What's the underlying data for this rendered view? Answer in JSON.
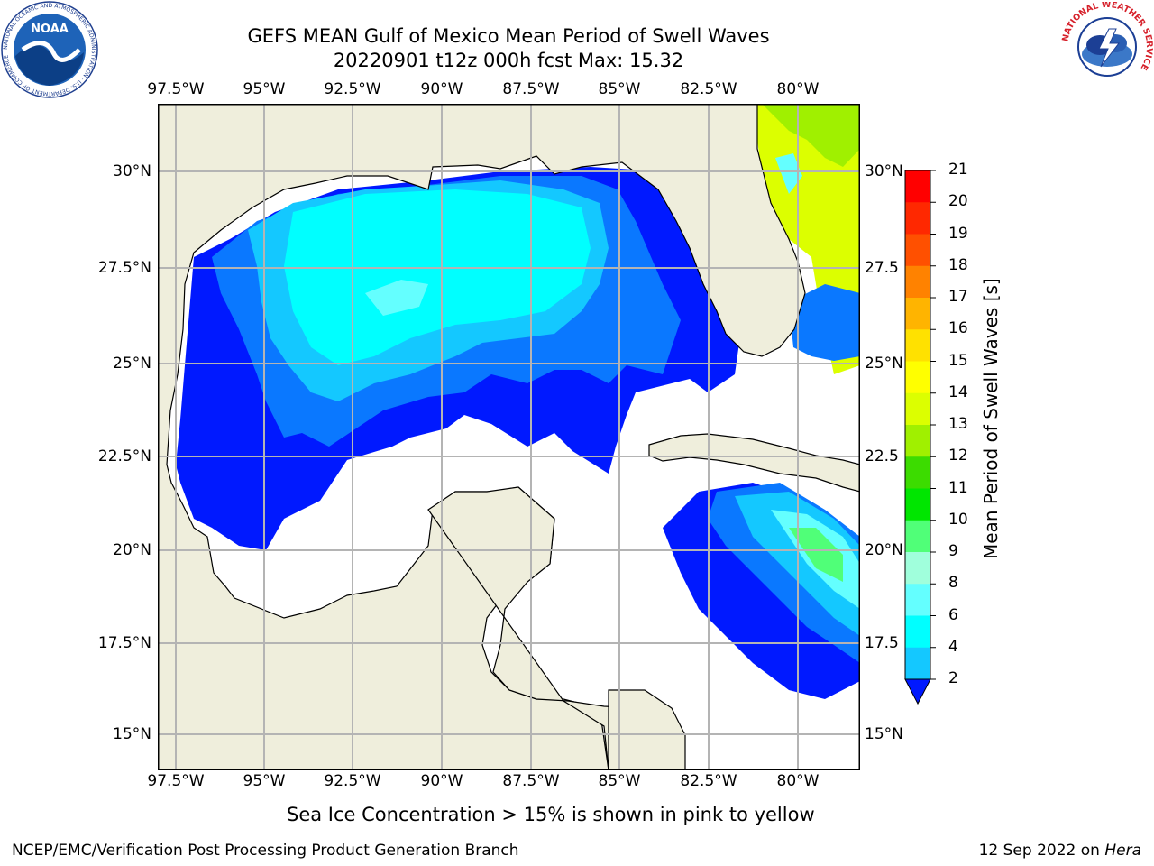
{
  "title": {
    "line1": "GEFS MEAN Gulf of Mexico Mean Period of Swell Waves",
    "line2": "20220901 t12z 000h fcst   Max: 15.32"
  },
  "map": {
    "lon_labels": [
      "97.5°W",
      "95°W",
      "92.5°W",
      "90°W",
      "87.5°W",
      "85°W",
      "82.5°W",
      "80°W"
    ],
    "lat_labels_left": [
      "30°N",
      "27.5°N",
      "25°N",
      "22.5°N",
      "20°N",
      "17.5°N",
      "15°N"
    ],
    "lat_labels_right": [
      "30°N",
      "27.5",
      "25°N",
      "22.5",
      "20°N",
      "17.5",
      "15°N"
    ],
    "colors": {
      "land": "#efeedc",
      "ocean_nodata": "#ffffff",
      "grid": "#b4b4b4",
      "coast": "#000000"
    }
  },
  "colorbar": {
    "title": "Mean Period of Swell Waves [s]",
    "ticks": [
      "2",
      "4",
      "6",
      "8",
      "9",
      "10",
      "11",
      "12",
      "13",
      "14",
      "15",
      "16",
      "17",
      "18",
      "19",
      "20",
      "21"
    ],
    "colors": [
      "#0019ff",
      "#0a78ff",
      "#14c8ff",
      "#00ffff",
      "#64ffff",
      "#a0ffdc",
      "#50ff78",
      "#00e600",
      "#3cdc00",
      "#a0f000",
      "#dcff00",
      "#ffff00",
      "#ffe100",
      "#ffb400",
      "#ff8200",
      "#ff5000",
      "#ff2800",
      "#ff0000"
    ]
  },
  "subtitle": "Sea Ice Concentration > 15% is shown in pink to yellow",
  "footer": {
    "left": "NCEP/EMC/Verification Post Processing Product Generation Branch",
    "right_text": "12 Sep 2022 on ",
    "right_italic": "Hera"
  },
  "logos": {
    "noaa_text": "NOAA",
    "noaa_ring": "NATIONAL OCEANIC AND ATMOSPHERIC ADMINISTRATION · U.S. DEPARTMENT OF COMMERCE",
    "nws_ring": "NATIONAL WEATHER SERVICE"
  }
}
